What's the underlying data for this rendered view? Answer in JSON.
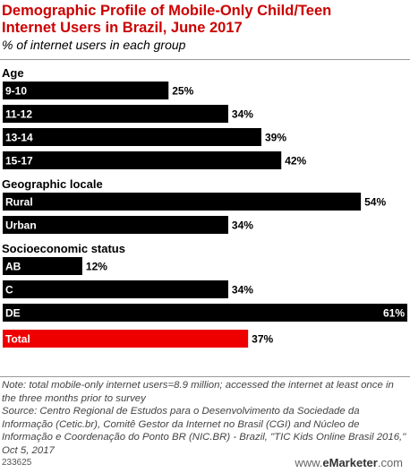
{
  "header": {
    "title": "Demographic Profile of Mobile-Only Child/Teen Internet Users in Brazil, June 2017",
    "subtitle": "% of internet users in each group"
  },
  "chart_data": {
    "type": "bar",
    "orientation": "horizontal",
    "value_suffix": "%",
    "xlim": [
      0,
      61
    ],
    "grid": false,
    "colors": {
      "bar": "#000000",
      "total": "#ee0000"
    },
    "groups": [
      {
        "name": "Age",
        "categories": [
          "9-10",
          "11-12",
          "13-14",
          "15-17"
        ],
        "values": [
          25,
          34,
          39,
          42
        ]
      },
      {
        "name": "Geographic locale",
        "categories": [
          "Rural",
          "Urban"
        ],
        "values": [
          54,
          34
        ]
      },
      {
        "name": "Socioeconomic status",
        "categories": [
          "AB",
          "C",
          "DE"
        ],
        "values": [
          12,
          34,
          61
        ]
      },
      {
        "name": "",
        "categories": [
          "Total"
        ],
        "values": [
          37
        ],
        "highlight": true
      }
    ]
  },
  "footer": {
    "note": "Note: total mobile-only internet users=8.9 million; accessed the internet at least once in the three months prior to survey",
    "source": "Source: Centro Regional de Estudos para o Desenvolvimento da Sociedade da Informação (Cetic.br), Comitê Gestor da Internet no Brasil (CGI) and Núcleo de Informação e Coordenação do Ponto BR (NIC.BR) - Brazil, \"TIC Kids Online Brasil 2016,\" Oct 5, 2017",
    "chart_id": "233625",
    "brand_prefix": "www.",
    "brand_name": "eMarketer",
    "brand_suffix": ".com"
  }
}
